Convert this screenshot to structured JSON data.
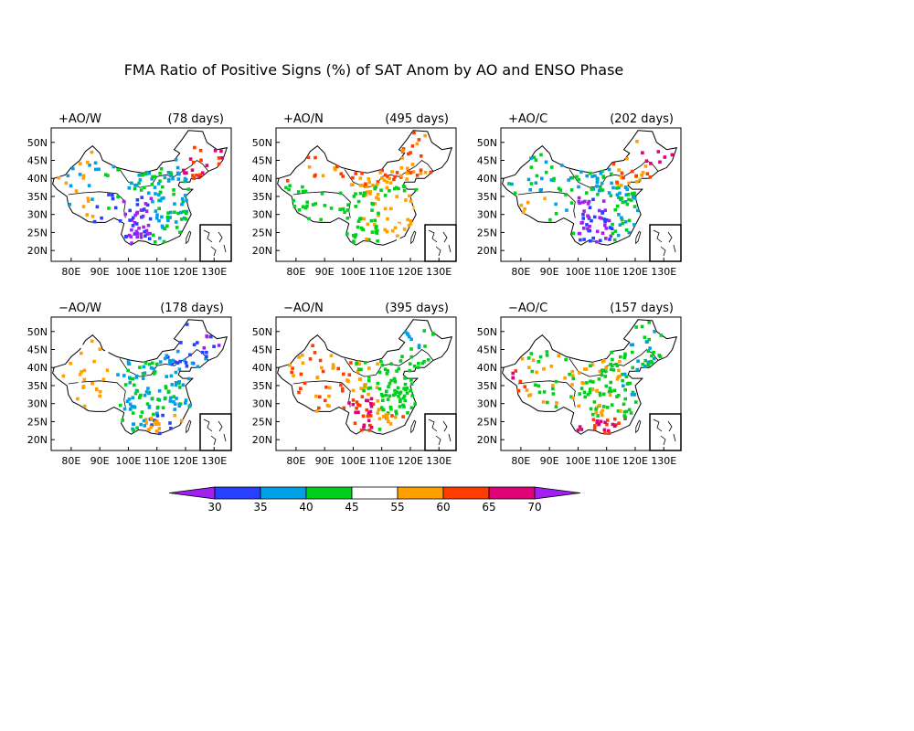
{
  "figure": {
    "title": "FMA Ratio of Positive Signs (%) of SAT Anom by AO and ENSO Phase"
  },
  "axes": {
    "lat_labels": [
      "50N",
      "45N",
      "40N",
      "35N",
      "30N",
      "25N",
      "20N"
    ],
    "lat_values": [
      50,
      45,
      40,
      35,
      30,
      25,
      20
    ],
    "lon_labels": [
      "80E",
      "90E",
      "100E",
      "110E",
      "120E",
      "130E"
    ],
    "lon_values": [
      80,
      90,
      100,
      110,
      120,
      130
    ],
    "lon_range": [
      73,
      136
    ],
    "lat_range": [
      17,
      54
    ]
  },
  "panels": [
    {
      "label": "+AO/W",
      "days": "(78 days)"
    },
    {
      "label": "+AO/N",
      "days": "(495 days)"
    },
    {
      "label": "+AO/C",
      "days": "(202 days)"
    },
    {
      "label": "−AO/W",
      "days": "(178 days)"
    },
    {
      "label": "−AO/N",
      "days": "(395 days)"
    },
    {
      "label": "−AO/C",
      "days": "(157 days)"
    }
  ],
  "colorbar": {
    "labels": [
      "30",
      "35",
      "40",
      "45",
      "55",
      "60",
      "65",
      "70"
    ],
    "colors": [
      "#a020f0",
      "#2540ff",
      "#00a0e6",
      "#00d01c",
      "#ffffff",
      "#ffa000",
      "#ff3c00",
      "#e00078",
      "#a020f0"
    ]
  }
}
